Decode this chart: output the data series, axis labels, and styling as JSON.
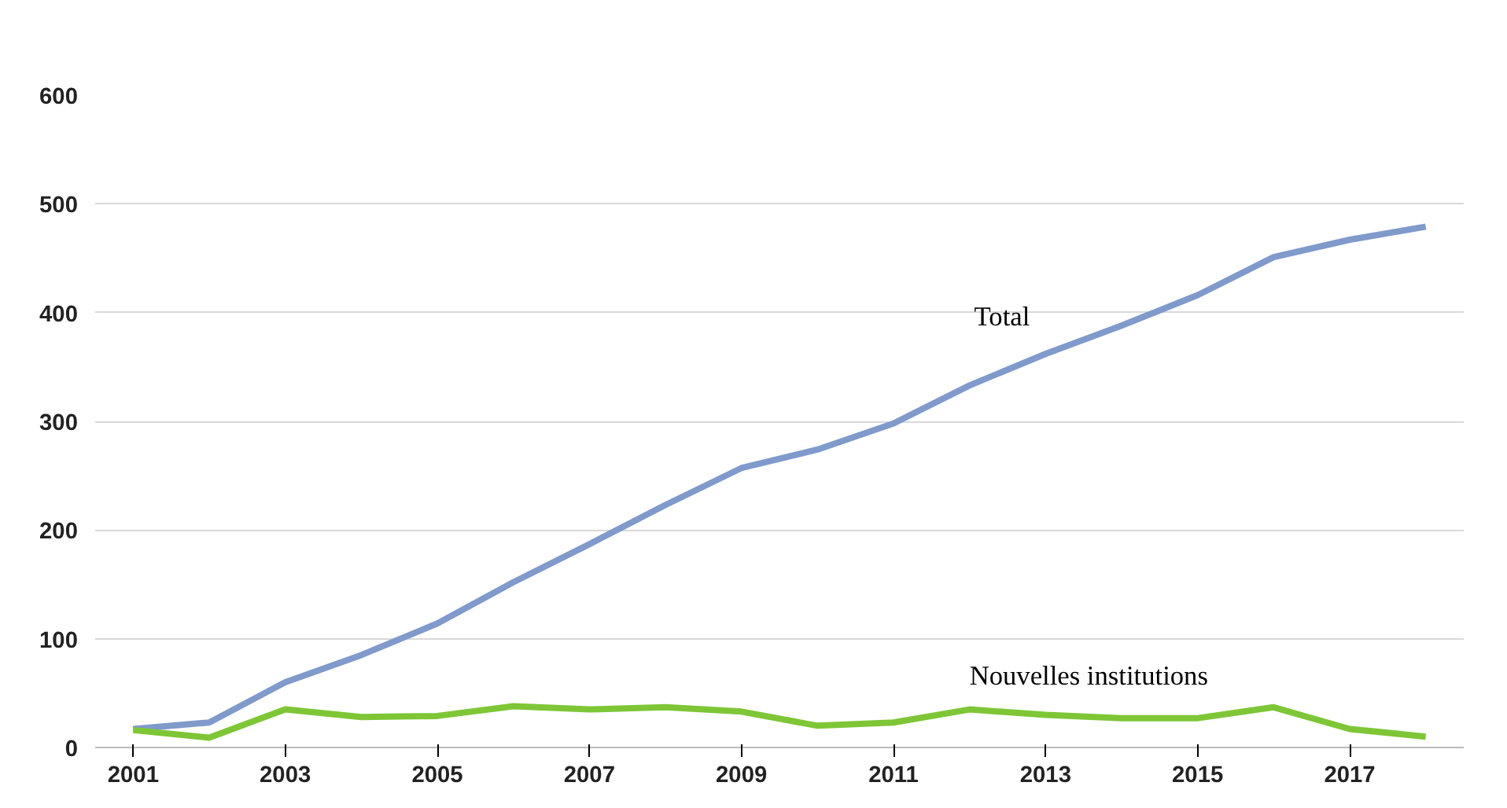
{
  "chart_data": {
    "type": "line",
    "x": [
      2001,
      2002,
      2003,
      2004,
      2005,
      2006,
      2007,
      2008,
      2009,
      2010,
      2011,
      2012,
      2013,
      2014,
      2015,
      2016,
      2017,
      2018
    ],
    "series": [
      {
        "name": "Total",
        "color": "#7f9acb",
        "values": [
          17,
          23,
          60,
          85,
          114,
          152,
          187,
          223,
          257,
          274,
          298,
          333,
          362,
          388,
          416,
          451,
          467,
          479
        ]
      },
      {
        "name": "Nouvelles institutions",
        "color": "#7ec636",
        "values": [
          16,
          9,
          35,
          28,
          29,
          38,
          35,
          37,
          33,
          20,
          23,
          35,
          30,
          27,
          27,
          37,
          17,
          10
        ]
      }
    ],
    "xlim": [
      2000.5,
      2018.5
    ],
    "xticks": [
      2001,
      2003,
      2005,
      2007,
      2009,
      2011,
      2013,
      2015,
      2017
    ],
    "ylim": [
      0,
      600
    ],
    "yticks": [
      0,
      100,
      200,
      300,
      400,
      500,
      600
    ],
    "grid": "y",
    "marker": "none",
    "line_style": "solid"
  }
}
